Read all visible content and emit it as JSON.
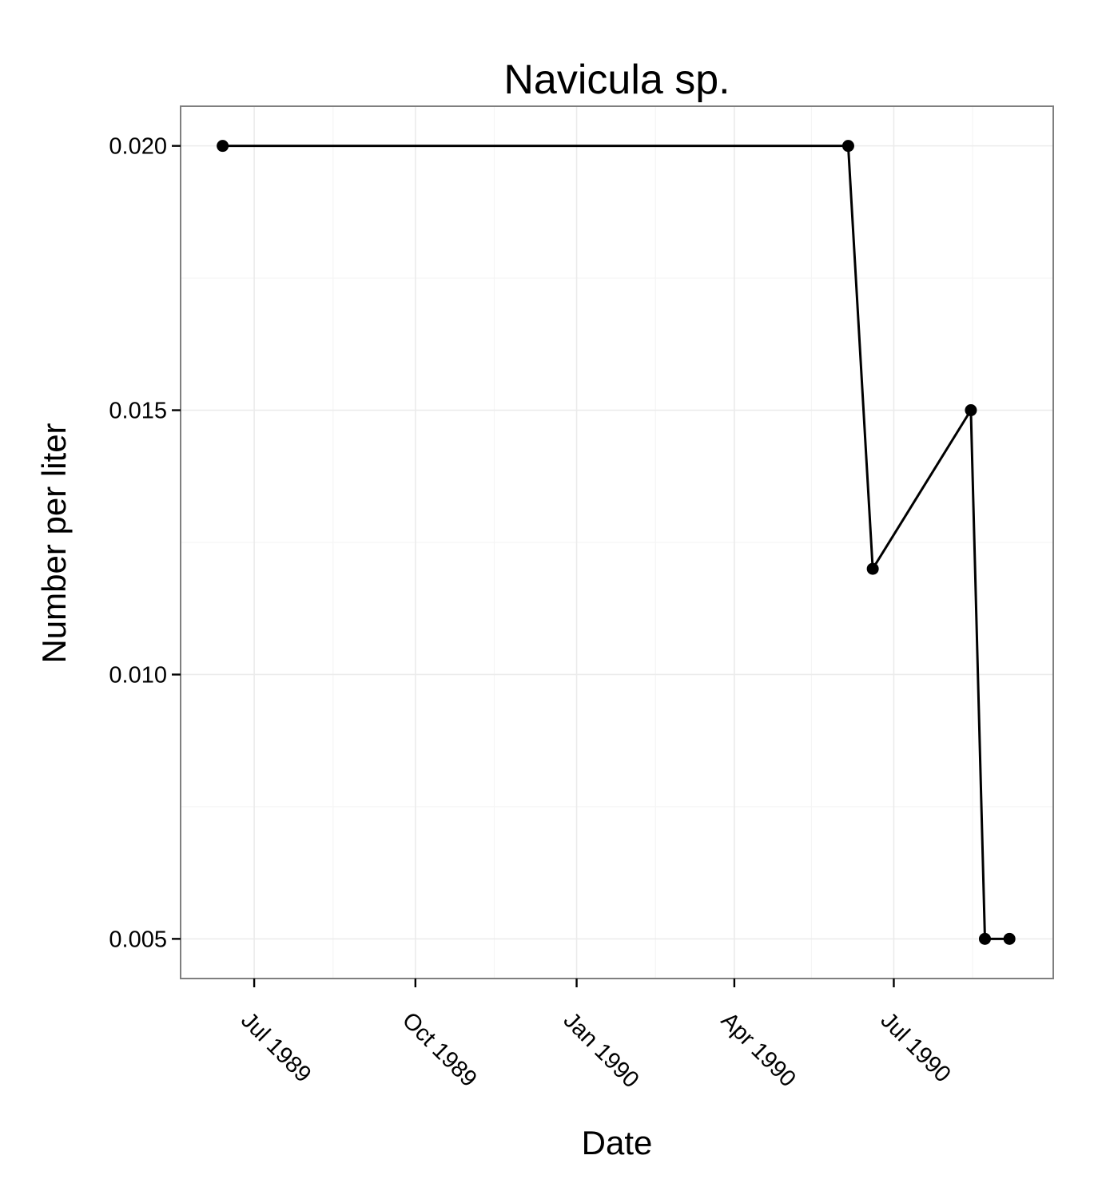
{
  "chart_data": {
    "type": "line",
    "title": "Navicula sp.",
    "xlabel": "Date",
    "ylabel": "Number per liter",
    "x_is_date": true,
    "xlim": [
      "1989-05-20",
      "1990-09-30"
    ],
    "ylim": [
      0.00425,
      0.02075
    ],
    "x_ticks": [
      {
        "date": "1989-07-01",
        "label": "Jul 1989"
      },
      {
        "date": "1989-10-01",
        "label": "Oct 1989"
      },
      {
        "date": "1990-01-01",
        "label": "Jan 1990"
      },
      {
        "date": "1990-04-01",
        "label": "Apr 1990"
      },
      {
        "date": "1990-07-01",
        "label": "Jul 1990"
      }
    ],
    "x_minor_ticks": [
      "1989-08-15",
      "1989-11-15",
      "1990-02-15",
      "1990-05-15",
      "1990-08-15"
    ],
    "y_ticks": [
      {
        "value": 0.005,
        "label": "0.005"
      },
      {
        "value": 0.01,
        "label": "0.010"
      },
      {
        "value": 0.015,
        "label": "0.015"
      },
      {
        "value": 0.02,
        "label": "0.020"
      }
    ],
    "y_minor_ticks": [
      0.0075,
      0.0125,
      0.0175
    ],
    "grid": true,
    "series": [
      {
        "color": "#000000",
        "points": [
          {
            "x": "1989-06-13",
            "y": 0.02
          },
          {
            "x": "1990-06-05",
            "y": 0.02
          },
          {
            "x": "1990-06-19",
            "y": 0.012
          },
          {
            "x": "1990-08-14",
            "y": 0.015
          },
          {
            "x": "1990-08-22",
            "y": 0.005
          },
          {
            "x": "1990-09-05",
            "y": 0.005
          }
        ]
      }
    ]
  }
}
